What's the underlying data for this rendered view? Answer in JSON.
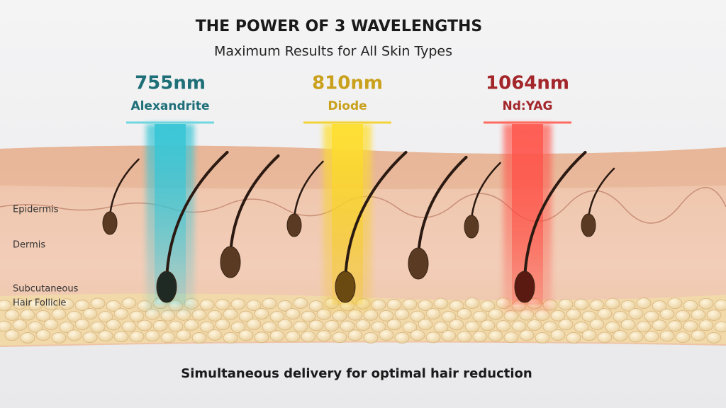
{
  "header": {
    "title": "THE POWER OF 3 WAVELENGTHS",
    "subtitle": "Maximum Results for All Skin Types"
  },
  "wavelengths": [
    {
      "label": "755nm",
      "name": "Alexandrite"
    },
    {
      "label": "810nm",
      "name": "Diode"
    },
    {
      "label": "1064nm",
      "name": "Nd:YAG"
    }
  ],
  "layers": [
    "Epidermis",
    "Dermis",
    "Subcutaneous",
    "Hair Follicle"
  ],
  "caption": "Simultaneous delivery for optimal hair reduction"
}
